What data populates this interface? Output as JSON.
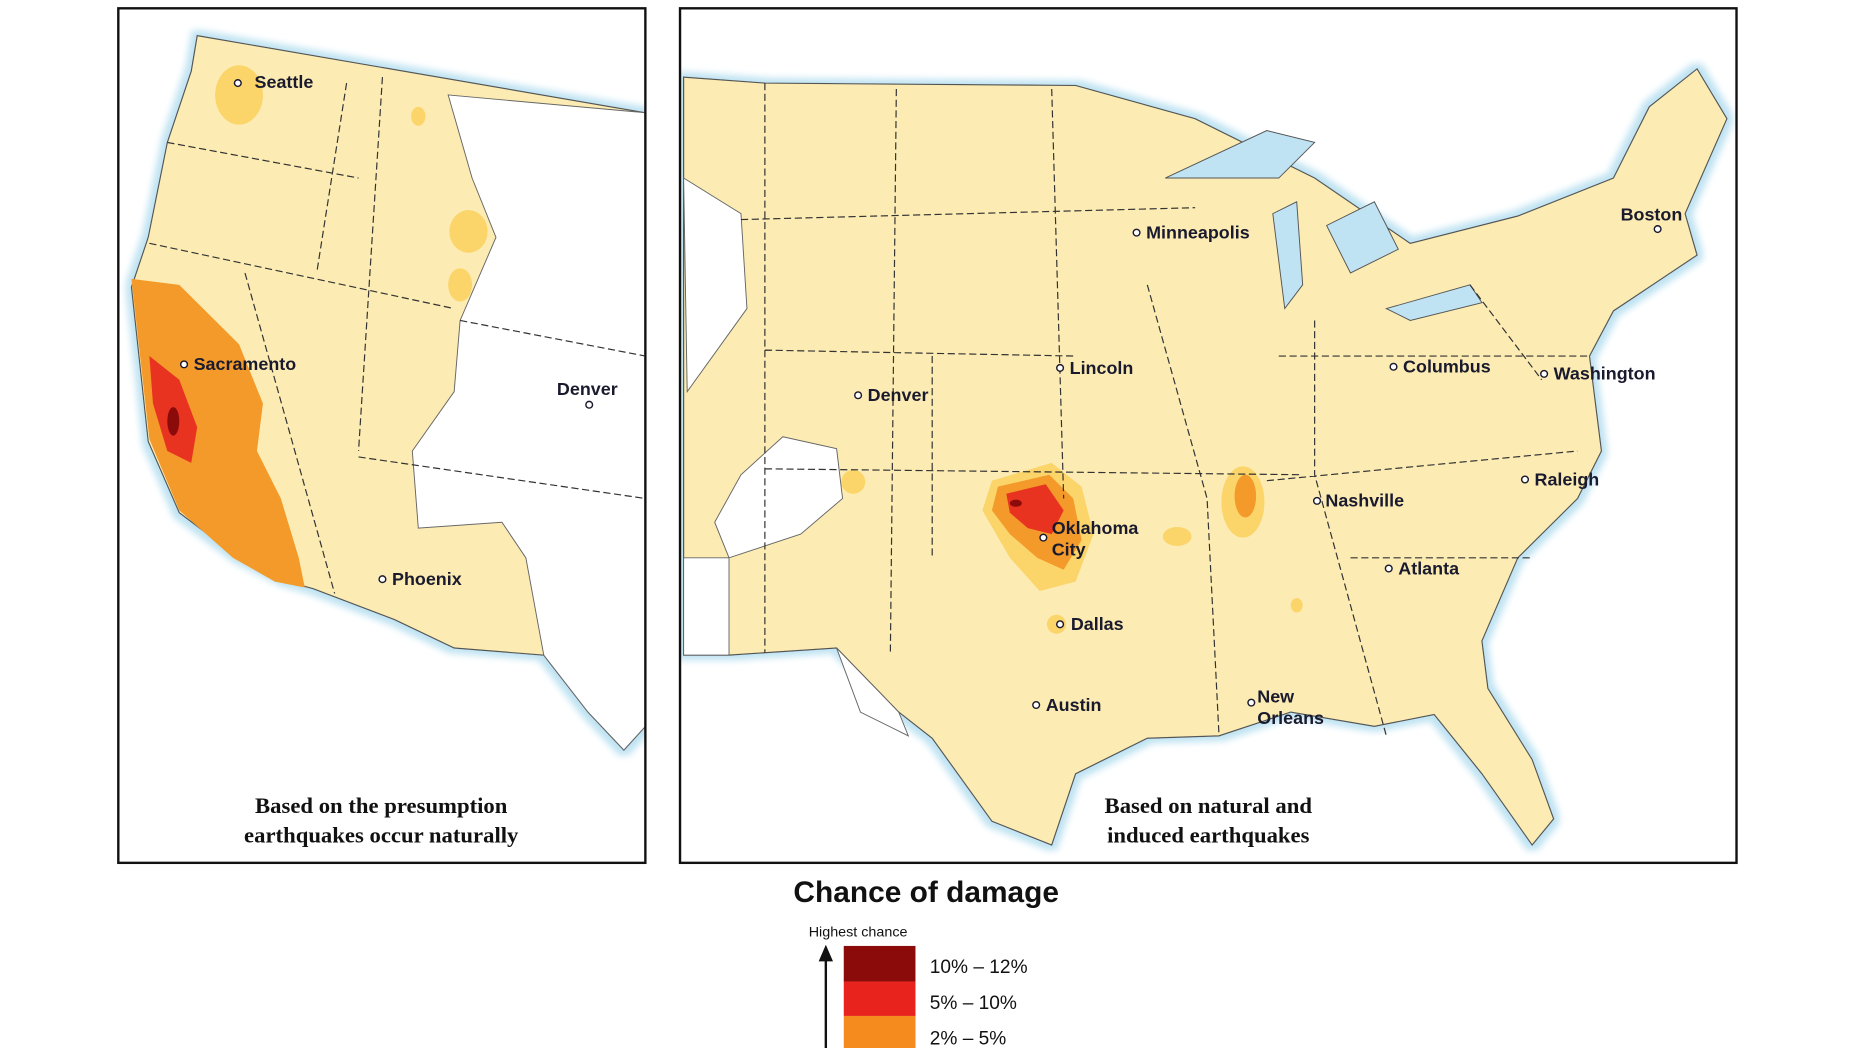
{
  "left_panel": {
    "caption": [
      "Based on the presumption",
      "earthquakes occur naturally"
    ],
    "cities": [
      [
        "Seattle"
      ],
      [
        "Sacramento"
      ],
      [
        "Denver"
      ],
      [
        "Phoenix"
      ]
    ]
  },
  "right_panel": {
    "caption": [
      "Based on natural and",
      "induced earthquakes"
    ],
    "cities": [
      [
        "Minneapolis"
      ],
      [
        "Boston"
      ],
      [
        "Lincoln"
      ],
      [
        "Columbus"
      ],
      [
        "Washington"
      ],
      [
        "Denver"
      ],
      [
        "Oklahoma",
        "City"
      ],
      [
        "Nashville"
      ],
      [
        "Raleigh"
      ],
      [
        "Atlanta"
      ],
      [
        "Dallas"
      ],
      [
        "Austin"
      ],
      [
        "New",
        "Orleans"
      ]
    ]
  },
  "legend": {
    "title": "Chance of damage",
    "axis_label": "Highest chance",
    "items": [
      "10% – 12%",
      "5% – 10%",
      "2% – 5%"
    ]
  }
}
